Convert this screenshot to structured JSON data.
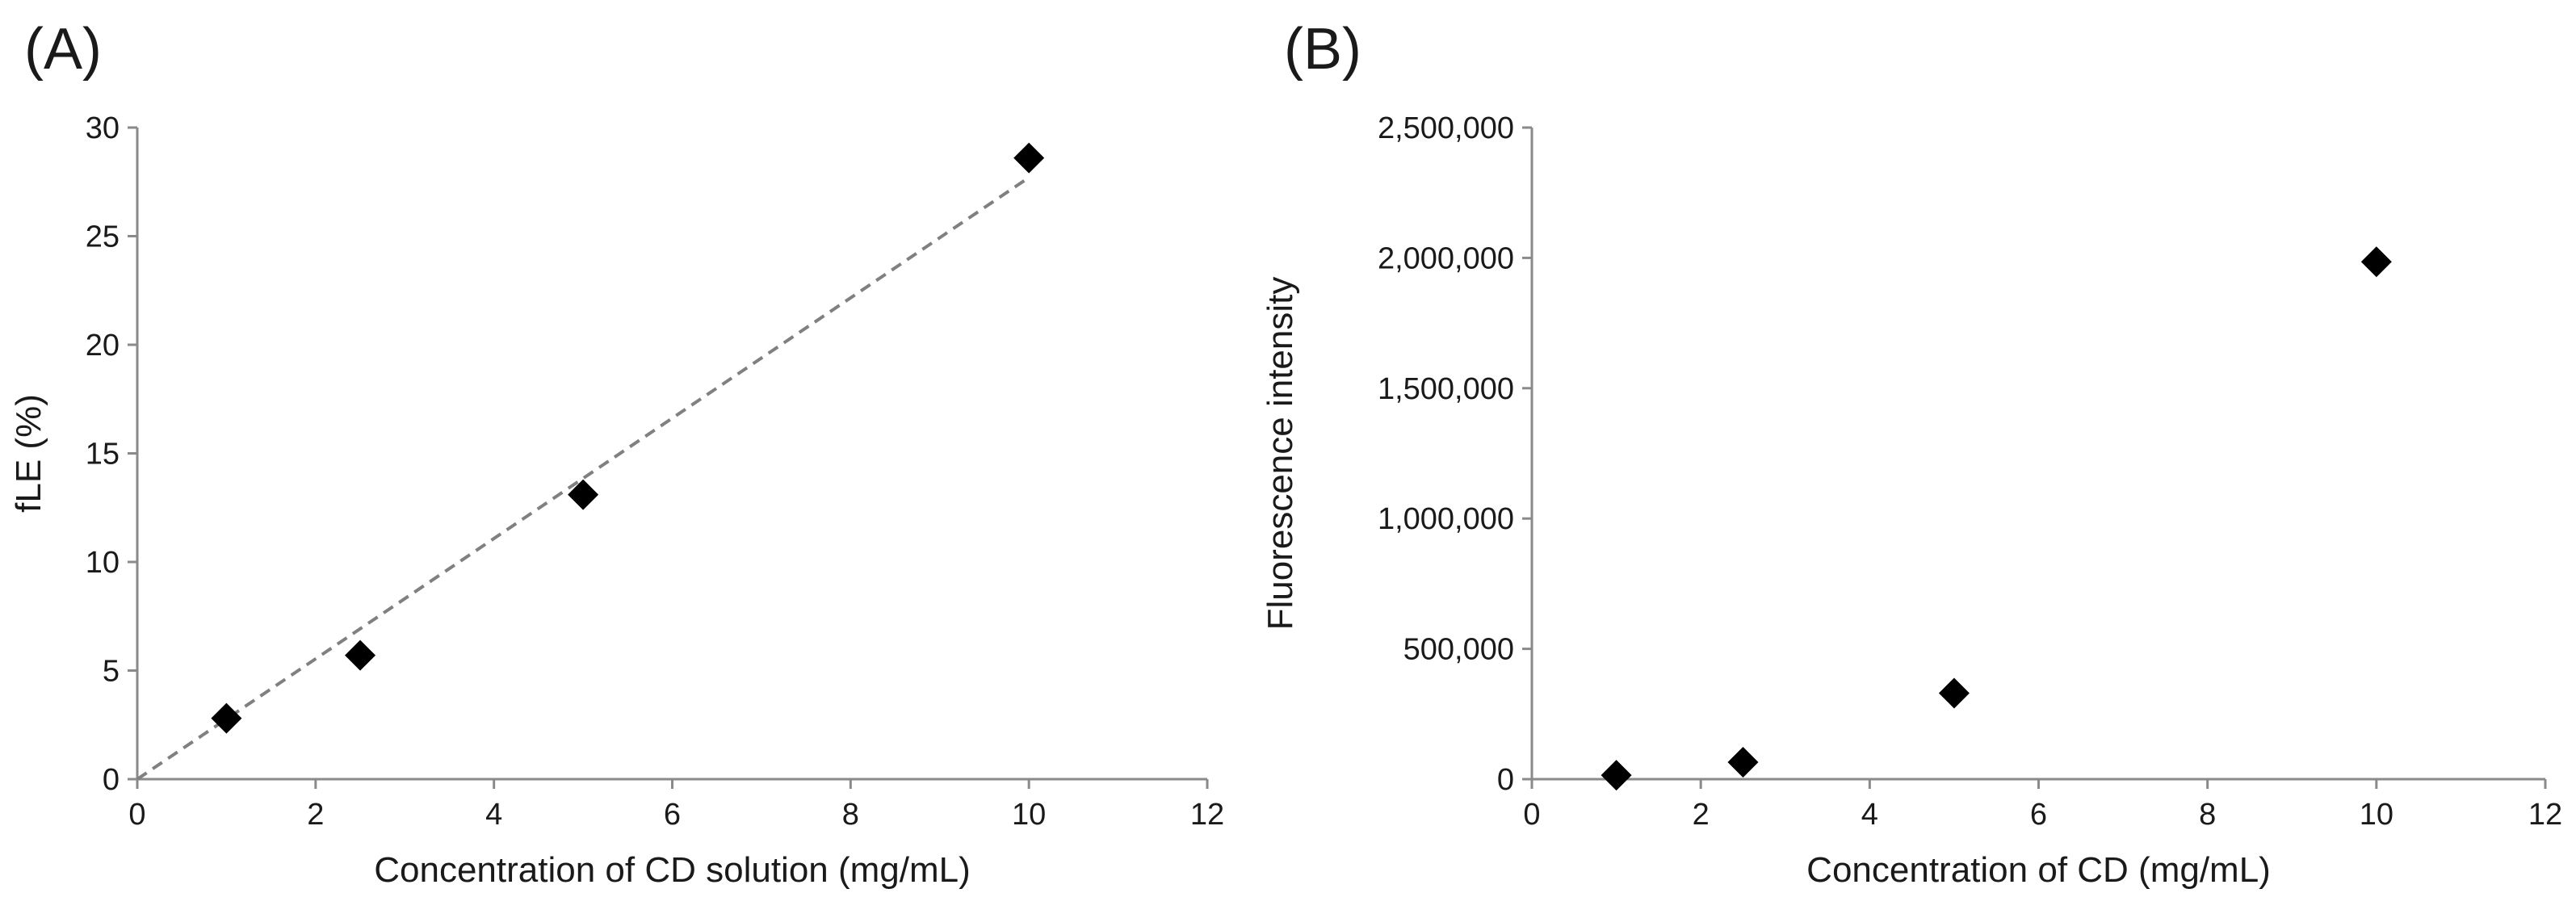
{
  "chart_data": [
    {
      "panel": "(A)",
      "type": "scatter",
      "title": "",
      "xlabel": "Concentration of CD solution (mg/mL)",
      "ylabel": "fLE (%)",
      "xlim": [
        0,
        12
      ],
      "ylim": [
        0,
        30
      ],
      "xticks": [
        0,
        2,
        4,
        6,
        8,
        10,
        12
      ],
      "yticks": [
        0,
        5,
        10,
        15,
        20,
        25,
        30
      ],
      "xtick_labels": [
        "0",
        "2",
        "4",
        "6",
        "8",
        "10",
        "12"
      ],
      "ytick_labels": [
        "0",
        "5",
        "10",
        "15",
        "20",
        "25",
        "30"
      ],
      "grid": false,
      "marker_color": "#000000",
      "series": [
        {
          "name": "fLE",
          "x": [
            1,
            2.5,
            5,
            10
          ],
          "y": [
            2.8,
            5.7,
            13.1,
            28.6
          ]
        }
      ],
      "trendline": {
        "style": "dashed",
        "color": "#808080",
        "x": [
          0,
          10
        ],
        "y": [
          0,
          27.7
        ]
      }
    },
    {
      "panel": "(B)",
      "type": "scatter",
      "title": "",
      "xlabel": "Concentration of CD (mg/mL)",
      "ylabel": "Fluorescence intensity",
      "xlim": [
        0,
        12
      ],
      "ylim": [
        0,
        2500000
      ],
      "xticks": [
        0,
        2,
        4,
        6,
        8,
        10,
        12
      ],
      "yticks": [
        0,
        500000,
        1000000,
        1500000,
        2000000,
        2500000
      ],
      "xtick_labels": [
        "0",
        "2",
        "4",
        "6",
        "8",
        "10",
        "12"
      ],
      "ytick_labels": [
        "0",
        "500,000",
        "1,000,000",
        "1,500,000",
        "2,000,000",
        "2,500,000"
      ],
      "grid": false,
      "marker_color": "#000000",
      "series": [
        {
          "name": "Fluorescence intensity",
          "x": [
            1,
            2.5,
            5,
            10
          ],
          "y": [
            15000,
            65000,
            330000,
            1985000
          ]
        }
      ]
    }
  ]
}
